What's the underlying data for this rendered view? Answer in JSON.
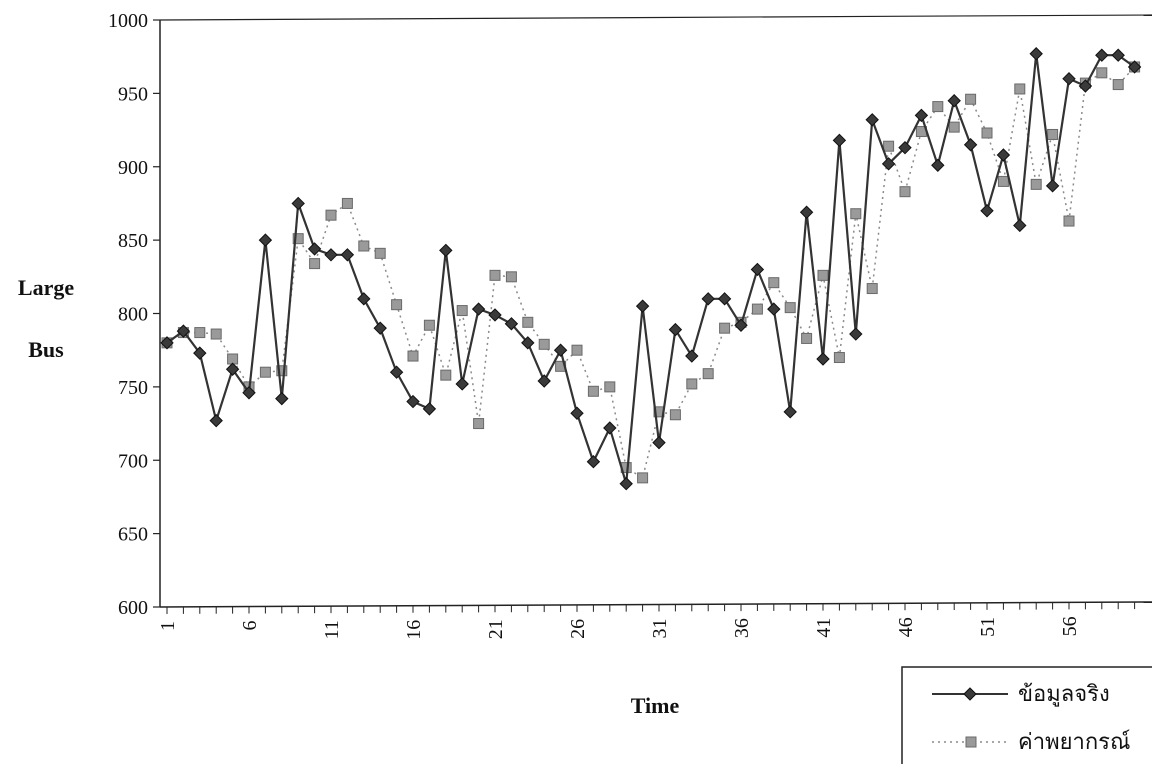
{
  "chart_data": {
    "type": "line",
    "xlabel": "Time",
    "ylabel_lines": [
      "Large",
      "Bus"
    ],
    "ylim": [
      600,
      1000
    ],
    "yticks": [
      600,
      650,
      700,
      750,
      800,
      850,
      900,
      950,
      1000
    ],
    "xlim": [
      1,
      60
    ],
    "xtick_labels": [
      "1",
      "6",
      "11",
      "16",
      "21",
      "26",
      "31",
      "36",
      "41",
      "46",
      "51",
      "56"
    ],
    "grid": false,
    "legend_position": "bottom-right",
    "series": [
      {
        "name": "ข้อมูลจริง",
        "style": "solid",
        "marker": "diamond",
        "color": "#333333",
        "x": [
          1,
          2,
          3,
          4,
          5,
          6,
          7,
          8,
          9,
          10,
          11,
          12,
          13,
          14,
          15,
          16,
          17,
          18,
          19,
          20,
          21,
          22,
          23,
          24,
          25,
          26,
          27,
          28,
          29,
          30,
          31,
          32,
          33,
          34,
          35,
          36,
          37,
          38,
          39,
          40,
          41,
          42,
          43,
          44,
          45,
          46,
          47,
          48,
          49,
          50,
          51,
          52,
          53,
          54,
          55,
          56,
          57,
          58,
          59,
          60
        ],
        "values": [
          780,
          788,
          773,
          727,
          762,
          746,
          850,
          742,
          875,
          844,
          840,
          840,
          810,
          790,
          760,
          740,
          735,
          843,
          752,
          803,
          799,
          793,
          780,
          754,
          775,
          732,
          699,
          722,
          684,
          805,
          712,
          789,
          771,
          810,
          810,
          792,
          830,
          803,
          733,
          869,
          769,
          918,
          786,
          932,
          902,
          913,
          935,
          901,
          945,
          915,
          870,
          908,
          860,
          977,
          887,
          960,
          955,
          976,
          976,
          968
        ]
      },
      {
        "name": "ค่าพยากรณ์",
        "style": "dotted",
        "marker": "square",
        "color": "#8a8a8a",
        "x": [
          1,
          2,
          3,
          4,
          5,
          6,
          7,
          8,
          9,
          10,
          11,
          12,
          13,
          14,
          15,
          16,
          17,
          18,
          19,
          20,
          21,
          22,
          23,
          24,
          25,
          26,
          27,
          28,
          29,
          30,
          31,
          32,
          33,
          34,
          35,
          36,
          37,
          38,
          39,
          40,
          41,
          42,
          43,
          44,
          45,
          46,
          47,
          48,
          49,
          50,
          51,
          52,
          53,
          54,
          55,
          56,
          57,
          58,
          59,
          60
        ],
        "values": [
          780,
          787,
          787,
          786,
          769,
          750,
          760,
          761,
          851,
          834,
          867,
          875,
          846,
          841,
          806,
          771,
          792,
          758,
          802,
          725,
          826,
          825,
          794,
          779,
          764,
          775,
          747,
          750,
          695,
          688,
          733,
          731,
          752,
          759,
          790,
          794,
          803,
          821,
          804,
          783,
          826,
          770,
          868,
          817,
          914,
          883,
          924,
          941,
          927,
          946,
          923,
          890,
          953,
          888,
          922,
          863,
          957,
          964,
          956,
          968
        ]
      }
    ]
  }
}
